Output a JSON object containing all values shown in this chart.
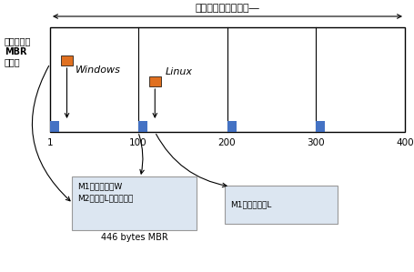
{
  "title_top": "全部硬碟的磁柱區間―",
  "left_label_line1": "第一磁區的",
  "left_label_line2": "MBR",
  "left_label_line3": "分割表",
  "win_label": "Windows",
  "lin_label": "Linux",
  "box1_text_line1": "M1：直接指向W",
  "box1_text_line2": "M2：指向L的開機磁區",
  "box2_text": "M1：直接指向L",
  "box1_label": "446 bytes MBR",
  "ticks": [
    "1",
    "100",
    "200",
    "300",
    "400"
  ],
  "bg_color": "#ffffff",
  "box_bg": "#dce6f1",
  "orange_color": "#e07020",
  "blue_color": "#4472c4",
  "gray_border": "#999999"
}
